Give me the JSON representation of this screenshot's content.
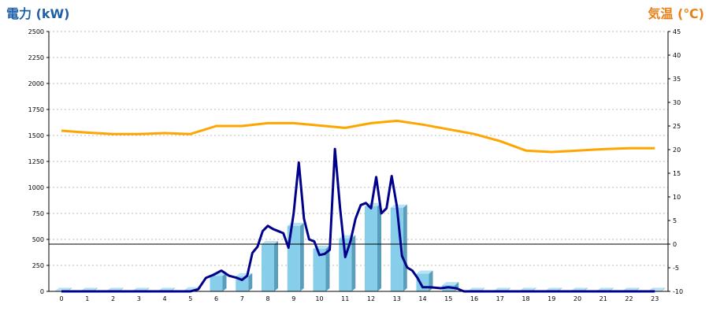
{
  "chart_data": {
    "type": "bar+line",
    "left_axis_title": "電力 (kW)",
    "right_axis_title": "気温 (℃)",
    "categories": [
      "0",
      "1",
      "2",
      "3",
      "4",
      "5",
      "6",
      "7",
      "8",
      "9",
      "10",
      "11",
      "12",
      "13",
      "14",
      "15",
      "16",
      "17",
      "18",
      "19",
      "20",
      "21",
      "22",
      "23"
    ],
    "left_ticks": [
      "0",
      "250",
      "500",
      "750",
      "1000",
      "1250",
      "1500",
      "1750",
      "2000",
      "2250",
      "2500"
    ],
    "right_ticks": [
      "-10",
      "-5",
      "0",
      "5",
      "10",
      "15",
      "20",
      "25",
      "30",
      "35",
      "40",
      "45"
    ],
    "ylim_left": [
      0,
      2500
    ],
    "ylim_right": [
      -10,
      45
    ],
    "grid": true,
    "colors": {
      "bar_front": "#87CEEB",
      "bar_side": "#5A9EBE",
      "bar_top": "#B9E3F5",
      "power_line": "#00008B",
      "temperature_line": "#FFA500",
      "gridline": "#BBBBBB",
      "left_title": "#1E5FA8",
      "right_title": "#E8811A"
    },
    "bars_kw": [
      5,
      5,
      5,
      5,
      5,
      10,
      150,
      145,
      455,
      630,
      410,
      510,
      820,
      805,
      170,
      60,
      5,
      5,
      5,
      5,
      5,
      5,
      5,
      5
    ],
    "power_line": {
      "x": [
        0,
        1,
        2,
        3,
        4,
        5,
        5.3,
        5.6,
        5.9,
        6.2,
        6.5,
        6.8,
        7.0,
        7.2,
        7.4,
        7.6,
        7.8,
        8.0,
        8.2,
        8.4,
        8.6,
        8.8,
        9.0,
        9.2,
        9.4,
        9.6,
        9.8,
        10.0,
        10.2,
        10.4,
        10.6,
        10.8,
        11.0,
        11.2,
        11.4,
        11.6,
        11.8,
        12.0,
        12.2,
        12.4,
        12.6,
        12.8,
        13.0,
        13.2,
        13.4,
        13.6,
        13.8,
        14.0,
        14.3,
        14.7,
        15.0,
        15.3,
        15.6,
        15.9,
        16,
        17,
        18,
        19,
        20,
        21,
        22,
        23
      ],
      "y": [
        0,
        0,
        0,
        0,
        0,
        0,
        20,
        130,
        160,
        200,
        150,
        130,
        110,
        150,
        370,
        430,
        580,
        630,
        600,
        580,
        560,
        420,
        750,
        1240,
        700,
        500,
        480,
        350,
        360,
        400,
        1370,
        800,
        330,
        480,
        700,
        830,
        850,
        800,
        1100,
        750,
        800,
        1110,
        820,
        340,
        230,
        200,
        130,
        40,
        40,
        30,
        40,
        30,
        0,
        0,
        0,
        0,
        0,
        0,
        0,
        0,
        0,
        0
      ]
    },
    "temperature_c": [
      24,
      23.6,
      23.3,
      23.3,
      23.5,
      23.3,
      25,
      25,
      25.6,
      25.6,
      25.1,
      24.6,
      25.6,
      26.1,
      25.3,
      24.3,
      23.3,
      21.8,
      19.8,
      19.5,
      19.8,
      20.1,
      20.3,
      20.3
    ]
  }
}
